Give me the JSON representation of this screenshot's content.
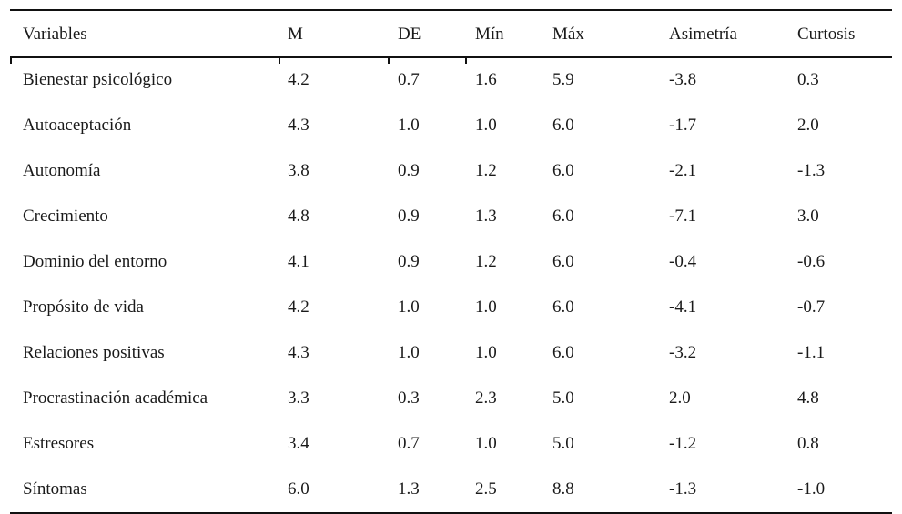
{
  "table": {
    "headers": [
      "Variables",
      "M",
      "DE",
      "Mín",
      "Máx",
      "Asimetría",
      "Curtosis"
    ],
    "rows": [
      [
        "Bienestar psicológico",
        "4.2",
        "0.7",
        "1.6",
        "5.9",
        "-3.8",
        "0.3"
      ],
      [
        "Autoaceptación",
        "4.3",
        "1.0",
        "1.0",
        "6.0",
        "-1.7",
        "2.0"
      ],
      [
        "Autonomía",
        "3.8",
        "0.9",
        "1.2",
        "6.0",
        "-2.1",
        "-1.3"
      ],
      [
        "Crecimiento",
        "4.8",
        "0.9",
        "1.3",
        "6.0",
        "-7.1",
        "3.0"
      ],
      [
        "Dominio del entorno",
        "4.1",
        "0.9",
        "1.2",
        "6.0",
        "-0.4",
        "-0.6"
      ],
      [
        "Propósito de vida",
        "4.2",
        "1.0",
        "1.0",
        "6.0",
        "-4.1",
        "-0.7"
      ],
      [
        "Relaciones positivas",
        "4.3",
        "1.0",
        "1.0",
        "6.0",
        "-3.2",
        "-1.1"
      ],
      [
        "Procrastinación académica",
        "3.3",
        "0.3",
        "2.3",
        "5.0",
        "2.0",
        "4.8"
      ],
      [
        "Estresores",
        "3.4",
        "0.7",
        "1.0",
        "5.0",
        "-1.2",
        "0.8"
      ],
      [
        "Síntomas",
        "6.0",
        "1.3",
        "2.5",
        "8.8",
        "-1.3",
        "-1.0"
      ]
    ]
  }
}
